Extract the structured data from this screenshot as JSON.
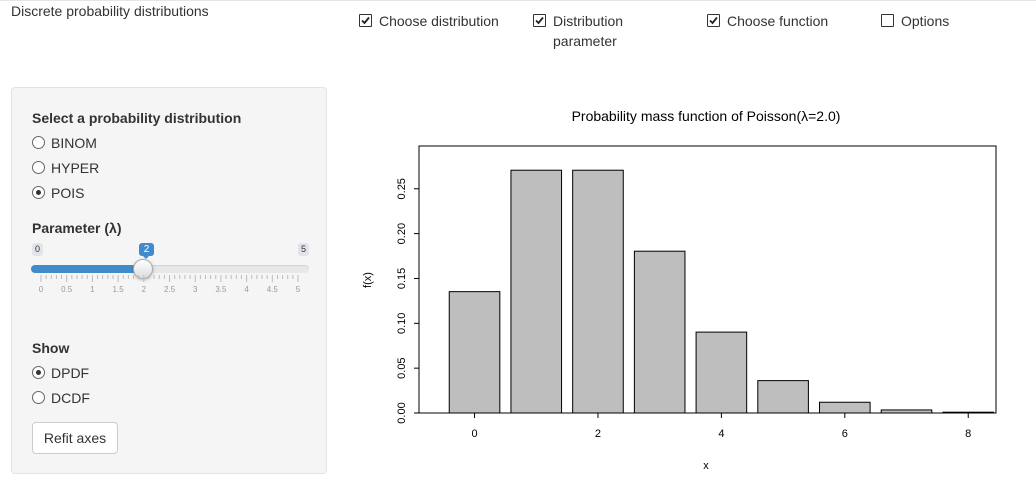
{
  "app": {
    "title": "Discrete probability distributions"
  },
  "top_checkboxes": [
    {
      "label": "Choose distribution",
      "checked": true
    },
    {
      "label": "Distribution",
      "label2": "parameter",
      "checked": true
    },
    {
      "label": "Choose function",
      "checked": true
    },
    {
      "label": "Options",
      "checked": false
    }
  ],
  "sidebar": {
    "dist_heading": "Select a probability distribution",
    "dist_options": [
      {
        "label": "BINOM",
        "selected": false
      },
      {
        "label": "HYPER",
        "selected": false
      },
      {
        "label": "POIS",
        "selected": true
      }
    ],
    "param_heading": "Parameter (λ)",
    "slider": {
      "min_label": "0",
      "max_label": "5",
      "value_label": "2",
      "value": 2,
      "min": 0,
      "max": 5,
      "tick_labels": [
        "0",
        "0.5",
        "1",
        "1.5",
        "2",
        "2.5",
        "3",
        "3.5",
        "4",
        "4.5",
        "5"
      ]
    },
    "show_heading": "Show",
    "show_options": [
      {
        "label": "DPDF",
        "selected": true
      },
      {
        "label": "DCDF",
        "selected": false
      }
    ],
    "refit_label": "Refit axes"
  },
  "chart_data": {
    "type": "bar",
    "title": "Probability mass function of Poisson(λ=2.0)",
    "xlabel": "x",
    "ylabel": "f(x)",
    "x": [
      0,
      1,
      2,
      3,
      4,
      5,
      6,
      7,
      8
    ],
    "values": [
      0.1353,
      0.2707,
      0.2707,
      0.1804,
      0.0902,
      0.0361,
      0.012,
      0.0034,
      0.0009
    ],
    "xticks": [
      0,
      2,
      4,
      6,
      8
    ],
    "xtick_labels": [
      "0",
      "2",
      "4",
      "6",
      "8"
    ],
    "yticks": [
      0.0,
      0.05,
      0.1,
      0.15,
      0.2,
      0.25
    ],
    "ytick_labels": [
      "0.00",
      "0.05",
      "0.10",
      "0.15",
      "0.20",
      "0.25"
    ],
    "xlim": [
      -0.9,
      8.45
    ],
    "ylim": [
      0,
      0.2977
    ],
    "bar_color": "#bebebe",
    "grid": false
  }
}
